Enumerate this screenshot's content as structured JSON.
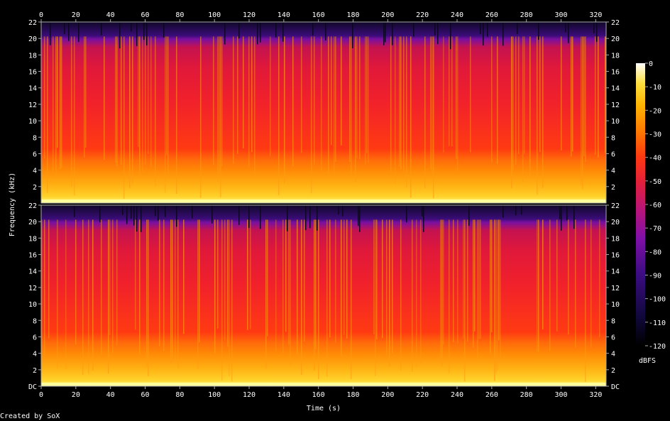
{
  "chart_data": {
    "type": "heatmap",
    "title": "",
    "xlabel": "Time (s)",
    "ylabel": "Frequency (kHz)",
    "x_ticks": [
      "0",
      "20",
      "40",
      "60",
      "80",
      "100",
      "120",
      "140",
      "160",
      "180",
      "200",
      "220",
      "240",
      "260",
      "280",
      "300",
      "320"
    ],
    "xlim": [
      0,
      326
    ],
    "channels": [
      {
        "y_ticks": [
          "2",
          "4",
          "6",
          "8",
          "10",
          "12",
          "14",
          "16",
          "18",
          "20",
          "22"
        ],
        "ylim": [
          0,
          22
        ]
      },
      {
        "y_ticks": [
          "DC",
          "2",
          "4",
          "6",
          "8",
          "10",
          "12",
          "14",
          "16",
          "18",
          "20",
          "22"
        ],
        "ylim": [
          0,
          22
        ]
      }
    ],
    "colorbar": {
      "label": "dBFS",
      "ticks": [
        "0",
        "-10",
        "-20",
        "-30",
        "-40",
        "-50",
        "-60",
        "-70",
        "-80",
        "-90",
        "-100",
        "-110",
        "-120"
      ],
      "range": [
        -120,
        0
      ],
      "colors": [
        "#000000",
        "#1a0a55",
        "#5a0fa0",
        "#a0109a",
        "#dd1f3a",
        "#ff3b10",
        "#ff8a00",
        "#ffd020",
        "#ffff90",
        "#ffffff"
      ]
    },
    "footer": "Created by SoX"
  }
}
